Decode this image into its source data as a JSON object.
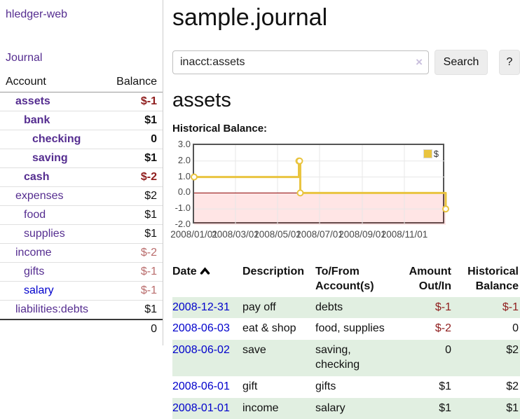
{
  "sidebar": {
    "brand": "hledger-web",
    "nav": {
      "journal_label": "Journal"
    },
    "table": {
      "account_header": "Account",
      "balance_header": "Balance"
    },
    "accounts": [
      {
        "name": "assets",
        "depth": 1,
        "bold": true,
        "link_color": "purple",
        "balance": "$-1",
        "balance_class": "v-neg-bold"
      },
      {
        "name": "bank",
        "depth": 2,
        "bold": true,
        "link_color": "purple",
        "balance": "$1",
        "balance_class": "v-bold"
      },
      {
        "name": "checking",
        "depth": 3,
        "bold": true,
        "link_color": "purple",
        "balance": "0",
        "balance_class": "v-bold"
      },
      {
        "name": "saving",
        "depth": 3,
        "bold": true,
        "link_color": "purple",
        "balance": "$1",
        "balance_class": "v-bold"
      },
      {
        "name": "cash",
        "depth": 2,
        "bold": true,
        "link_color": "purple",
        "balance": "$-2",
        "balance_class": "v-neg-bold"
      },
      {
        "name": "expenses",
        "depth": 1,
        "bold": false,
        "link_color": "purple",
        "balance": "$2",
        "balance_class": "v-plain"
      },
      {
        "name": "food",
        "depth": 2,
        "bold": false,
        "link_color": "purple",
        "balance": "$1",
        "balance_class": "v-plain"
      },
      {
        "name": "supplies",
        "depth": 2,
        "bold": false,
        "link_color": "purple",
        "balance": "$1",
        "balance_class": "v-plain"
      },
      {
        "name": "income",
        "depth": 1,
        "bold": false,
        "link_color": "purple",
        "balance": "$-2",
        "balance_class": "v-neg-muted"
      },
      {
        "name": "gifts",
        "depth": 2,
        "bold": false,
        "link_color": "purple",
        "balance": "$-1",
        "balance_class": "v-neg-muted"
      },
      {
        "name": "salary",
        "depth": 2,
        "bold": false,
        "link_color": "blue",
        "balance": "$-1",
        "balance_class": "v-neg-muted"
      },
      {
        "name": "liabilities:debts",
        "depth": 1,
        "bold": false,
        "link_color": "purple",
        "balance": "$1",
        "balance_class": "v-plain"
      }
    ],
    "total": "0"
  },
  "header": {
    "title": "sample.journal"
  },
  "search": {
    "query": "inacct:assets",
    "clear_icon": "×",
    "search_label": "Search",
    "help_label": "?"
  },
  "account_page": {
    "heading": "assets",
    "chart_label": "Historical Balance:"
  },
  "chart_data": {
    "type": "line",
    "step": true,
    "title": "Historical Balance",
    "legend": {
      "position": "top-right",
      "entries": [
        "$"
      ]
    },
    "xlim_days": [
      0,
      365
    ],
    "ylim": [
      -2,
      3
    ],
    "y_ticks": [
      "3.0",
      "2.0",
      "1.0",
      "0.0",
      "-1.0",
      "-2.0"
    ],
    "y_tick_values": [
      3,
      2,
      1,
      0,
      -1,
      -2
    ],
    "x_ticks": [
      {
        "label": "2008/01/01",
        "days": 0
      },
      {
        "label": "2008/03/01",
        "days": 60
      },
      {
        "label": "2008/05/01",
        "days": 121
      },
      {
        "label": "2008/07/01",
        "days": 182
      },
      {
        "label": "2008/09/01",
        "days": 244
      },
      {
        "label": "2008/11/01",
        "days": 305
      }
    ],
    "series": [
      {
        "name": "$",
        "color": "#e9c43f",
        "points": [
          {
            "date": "2008-01-01",
            "days": 0,
            "value": 1
          },
          {
            "date": "2008-06-01",
            "days": 152,
            "value": 2
          },
          {
            "date": "2008-06-02",
            "days": 153,
            "value": 2
          },
          {
            "date": "2008-06-03",
            "days": 154,
            "value": 0
          },
          {
            "date": "2008-12-31",
            "days": 365,
            "value": -1
          }
        ]
      }
    ],
    "grid": true,
    "zero_line_color": "#8b0000",
    "negative_region_fill": "rgba(255,0,0,0.10)",
    "gridline_color": "#e7e7e7",
    "border_color": "#545454"
  },
  "transactions": {
    "columns": [
      {
        "label": "Date",
        "sorted": "asc"
      },
      {
        "label": "Description"
      },
      {
        "label": "To/From Account(s)"
      },
      {
        "label": "Amount Out/In"
      },
      {
        "label": "Historical Balance"
      }
    ],
    "rows": [
      {
        "date": "2008-12-31",
        "description": "pay off",
        "accounts": "debts",
        "amount": "$-1",
        "amount_negative": true,
        "balance": "$-1",
        "balance_negative": true
      },
      {
        "date": "2008-06-03",
        "description": "eat & shop",
        "accounts": "food, supplies",
        "amount": "$-2",
        "amount_negative": true,
        "balance": "0",
        "balance_negative": false
      },
      {
        "date": "2008-06-02",
        "description": "save",
        "accounts": "saving, checking",
        "amount": "0",
        "amount_negative": false,
        "balance": "$2",
        "balance_negative": false
      },
      {
        "date": "2008-06-01",
        "description": "gift",
        "accounts": "gifts",
        "amount": "$1",
        "amount_negative": false,
        "balance": "$2",
        "balance_negative": false
      },
      {
        "date": "2008-01-01",
        "description": "income",
        "accounts": "salary",
        "amount": "$1",
        "amount_negative": false,
        "balance": "$1",
        "balance_negative": false
      }
    ]
  },
  "theme": {
    "purple_link": "#552d90",
    "blue_link": "#0000cc",
    "negative_bold": "#8f1d1d",
    "negative_muted": "#b96c6c",
    "stripe_green": "#e1efe1",
    "series_gold": "#e9c43f"
  }
}
